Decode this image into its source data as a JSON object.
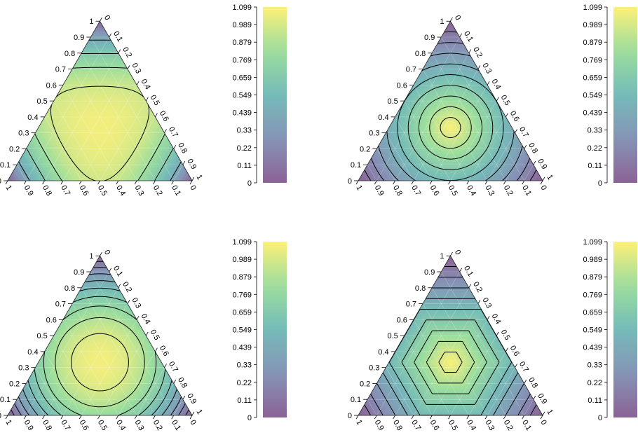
{
  "colors": {
    "viridis_stops": [
      "#440154",
      "#3b528b",
      "#21918c",
      "#5ec962",
      "#fde725"
    ],
    "contour_line": "#000000",
    "grid_line": "#ffffff"
  },
  "chart_data": [
    {
      "type": "heatmap",
      "subtype": "ternary-contour",
      "field": "flat-dome",
      "title": "",
      "ternary_axis_ticks": [
        "0",
        "0.1",
        "0.2",
        "0.3",
        "0.4",
        "0.5",
        "0.6",
        "0.7",
        "0.8",
        "0.9",
        "1"
      ],
      "contour_levels": [
        0.4,
        0.6,
        0.75,
        0.88,
        1.0
      ],
      "colorbar": {
        "vmin": 0,
        "vmax": 1.099,
        "tick_labels": [
          "0",
          "0.11",
          "0.22",
          "0.33",
          "0.439",
          "0.549",
          "0.659",
          "0.769",
          "0.879",
          "0.989",
          "1.099"
        ]
      },
      "grid": true
    },
    {
      "type": "heatmap",
      "subtype": "ternary-contour",
      "field": "circular",
      "title": "",
      "ternary_axis_ticks": [
        "0",
        "0.1",
        "0.2",
        "0.3",
        "0.4",
        "0.5",
        "0.6",
        "0.7",
        "0.8",
        "0.9",
        "1"
      ],
      "contour_levels": [
        0.1,
        0.2,
        0.3,
        0.4,
        0.5,
        0.6,
        0.7,
        0.8,
        0.9
      ],
      "colorbar": {
        "vmin": 0,
        "vmax": 1.099,
        "tick_labels": [
          "0",
          "0.11",
          "0.22",
          "0.33",
          "0.439",
          "0.549",
          "0.659",
          "0.769",
          "0.879",
          "0.989",
          "1.099"
        ]
      },
      "grid": true
    },
    {
      "type": "heatmap",
      "subtype": "ternary-contour",
      "field": "rounded-triangle",
      "title": "",
      "ternary_axis_ticks": [
        "0",
        "0.1",
        "0.2",
        "0.3",
        "0.4",
        "0.5",
        "0.6",
        "0.7",
        "0.8",
        "0.9",
        "1"
      ],
      "contour_levels": [
        0.1,
        0.2,
        0.3,
        0.4,
        0.5,
        0.6,
        0.7,
        0.8,
        0.9
      ],
      "colorbar": {
        "vmin": 0,
        "vmax": 1.099,
        "tick_labels": [
          "0",
          "0.11",
          "0.22",
          "0.33",
          "0.439",
          "0.549",
          "0.659",
          "0.769",
          "0.879",
          "0.989",
          "1.099"
        ]
      },
      "grid": true
    },
    {
      "type": "heatmap",
      "subtype": "ternary-contour",
      "field": "pyramid",
      "title": "",
      "ternary_axis_ticks": [
        "0",
        "0.1",
        "0.2",
        "0.3",
        "0.4",
        "0.5",
        "0.6",
        "0.7",
        "0.8",
        "0.9",
        "1"
      ],
      "contour_levels": [
        0.1,
        0.2,
        0.3,
        0.4,
        0.5,
        0.6,
        0.7,
        0.8,
        0.9
      ],
      "colorbar": {
        "vmin": 0,
        "vmax": 1.099,
        "tick_labels": [
          "0",
          "0.11",
          "0.22",
          "0.33",
          "0.439",
          "0.549",
          "0.659",
          "0.769",
          "0.879",
          "0.989",
          "1.099"
        ]
      },
      "grid": true
    }
  ]
}
